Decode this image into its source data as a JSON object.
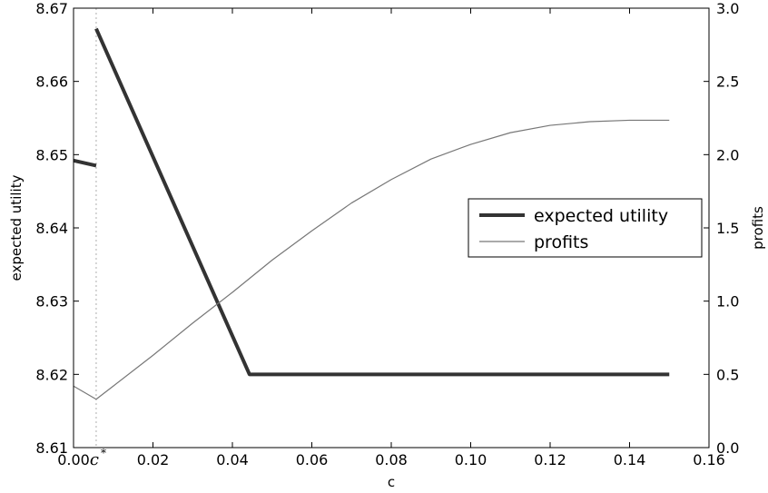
{
  "chart_data": {
    "type": "line",
    "xlabel": "c",
    "ylabel_left": "expected utility",
    "ylabel_right": "profits",
    "xlim": [
      0.0,
      0.16
    ],
    "ylim_left": [
      8.61,
      8.67
    ],
    "ylim_right": [
      0.0,
      3.0
    ],
    "x_ticks": [
      {
        "value": 0.0,
        "label": "0.00"
      },
      {
        "value": 0.02,
        "label": "0.02"
      },
      {
        "value": 0.04,
        "label": "0.04"
      },
      {
        "value": 0.06,
        "label": "0.06"
      },
      {
        "value": 0.08,
        "label": "0.08"
      },
      {
        "value": 0.1,
        "label": "0.10"
      },
      {
        "value": 0.12,
        "label": "0.12"
      },
      {
        "value": 0.14,
        "label": "0.14"
      },
      {
        "value": 0.16,
        "label": "0.16"
      }
    ],
    "y_ticks_left": [
      {
        "value": 8.61,
        "label": "8.61"
      },
      {
        "value": 8.62,
        "label": "8.62"
      },
      {
        "value": 8.63,
        "label": "8.63"
      },
      {
        "value": 8.64,
        "label": "8.64"
      },
      {
        "value": 8.65,
        "label": "8.65"
      },
      {
        "value": 8.66,
        "label": "8.66"
      },
      {
        "value": 8.67,
        "label": "8.67"
      }
    ],
    "y_ticks_right": [
      {
        "value": 0.0,
        "label": "0.0"
      },
      {
        "value": 0.5,
        "label": "0.5"
      },
      {
        "value": 1.0,
        "label": "1.0"
      },
      {
        "value": 1.5,
        "label": "1.5"
      },
      {
        "value": 2.0,
        "label": "2.0"
      },
      {
        "value": 2.5,
        "label": "2.5"
      },
      {
        "value": 3.0,
        "label": "3.0"
      }
    ],
    "marker": {
      "value": 0.0057,
      "label": "c",
      "superscript": "*",
      "style": "dotted",
      "color": "#bbbbbb"
    },
    "legend_position": "center-right",
    "grid": false,
    "series": [
      {
        "name": "expected utility",
        "axis": "left",
        "color": "#333333",
        "width": "thick",
        "segments": [
          [
            [
              0.0,
              8.6492
            ],
            [
              0.0057,
              8.6485
            ]
          ],
          [
            [
              0.0057,
              8.6672
            ],
            [
              0.0443,
              8.62
            ],
            [
              0.15,
              8.62
            ]
          ]
        ]
      },
      {
        "name": "profits",
        "axis": "right",
        "color": "#777777",
        "width": "thin",
        "segments": [
          [
            [
              0.0,
              0.42
            ],
            [
              0.0057,
              0.33
            ],
            [
              0.01,
              0.42
            ],
            [
              0.02,
              0.63
            ],
            [
              0.03,
              0.85
            ],
            [
              0.04,
              1.06
            ],
            [
              0.05,
              1.28
            ],
            [
              0.06,
              1.48
            ],
            [
              0.07,
              1.67
            ],
            [
              0.08,
              1.83
            ],
            [
              0.09,
              1.97
            ],
            [
              0.1,
              2.07
            ],
            [
              0.11,
              2.15
            ],
            [
              0.12,
              2.2
            ],
            [
              0.13,
              2.225
            ],
            [
              0.14,
              2.235
            ],
            [
              0.15,
              2.235
            ]
          ]
        ]
      }
    ]
  }
}
